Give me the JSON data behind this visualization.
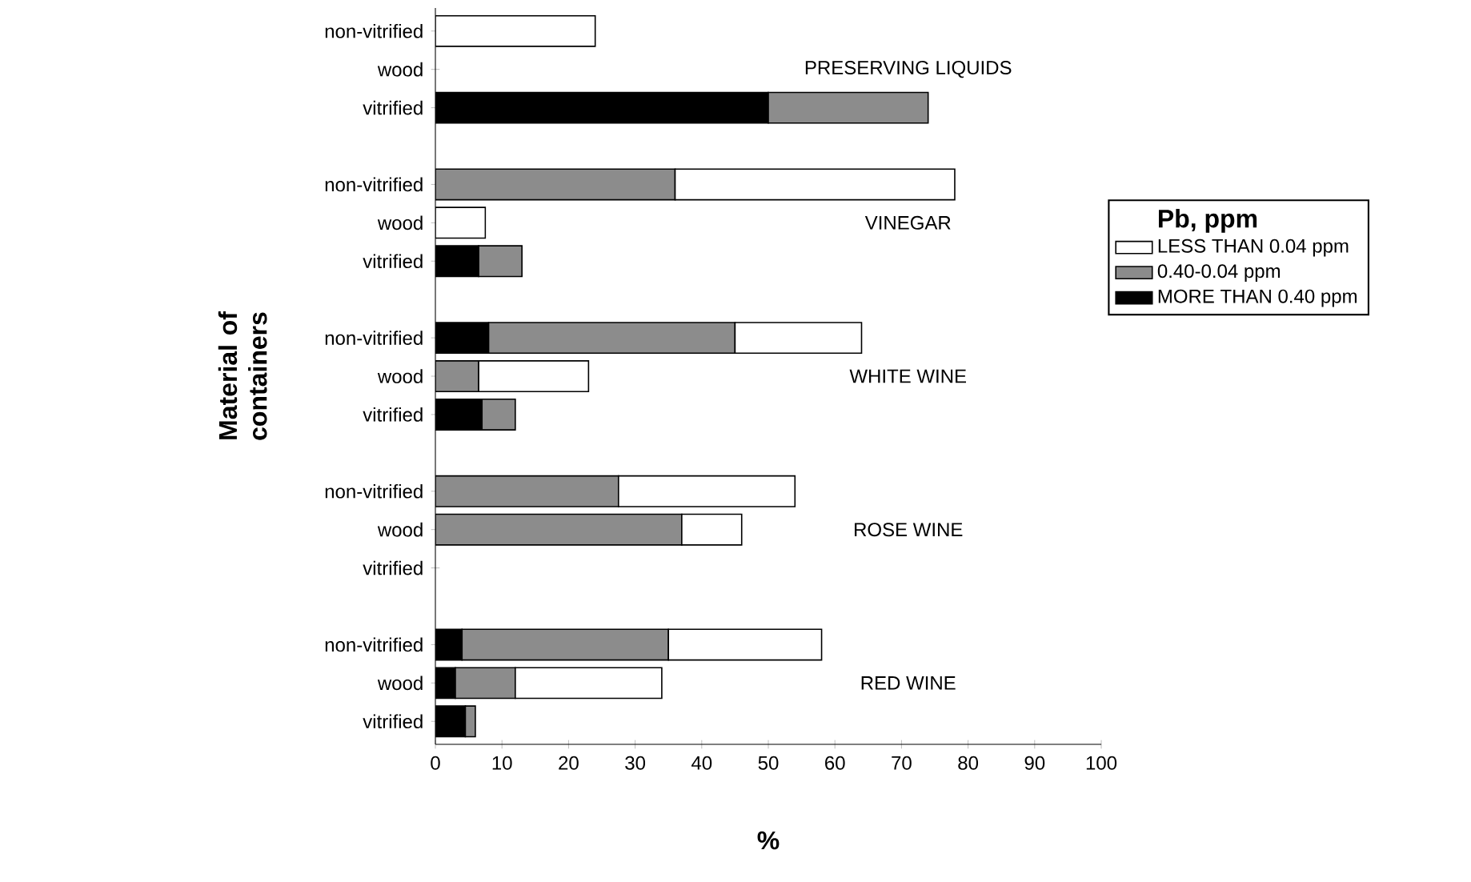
{
  "chart_data": {
    "type": "bar",
    "orientation": "horizontal",
    "stacked": true,
    "xlabel": "%",
    "ylabel": "Material of containers",
    "legend_title": "Pb, ppm",
    "legend": "right",
    "categories": [
      "non-vitrified",
      "wood",
      "vitrified",
      null,
      "non-vitrified",
      "wood",
      "vitrified",
      null,
      "non-vitrified",
      "wood",
      "vitrified",
      null,
      "non-vitrified",
      "wood",
      "vitrified",
      null,
      "non-vitrified",
      "wood",
      "vitrified"
    ],
    "series": [
      {
        "name": "MORE THAN 0.40 ppm",
        "color": "#000000",
        "values": [
          null,
          null,
          50,
          null,
          null,
          null,
          6.5,
          null,
          8,
          null,
          7,
          null,
          null,
          null,
          null,
          null,
          4,
          3,
          4.5
        ]
      },
      {
        "name": "0.40-0.04 ppm",
        "color": "#8c8c8c",
        "values": [
          null,
          null,
          24,
          null,
          36,
          null,
          6.5,
          null,
          37,
          6.5,
          5,
          null,
          27.5,
          37,
          null,
          null,
          31,
          9,
          1.5
        ]
      },
      {
        "name": "LESS THAN 0.04 ppm",
        "color": "#ffffff",
        "values": [
          24,
          null,
          null,
          null,
          42,
          7.5,
          null,
          null,
          19,
          16.5,
          null,
          null,
          26.5,
          9,
          null,
          null,
          23,
          22,
          null
        ]
      }
    ],
    "xlim": [
      0,
      100
    ],
    "xticks": [
      0,
      10,
      20,
      30,
      40,
      50,
      60,
      70,
      80,
      90,
      100
    ],
    "annotations": [
      "PRESERVING LIQUIDS",
      "VINEGAR",
      "WHITE WINE",
      "ROSE WINE",
      "RED WINE"
    ]
  }
}
